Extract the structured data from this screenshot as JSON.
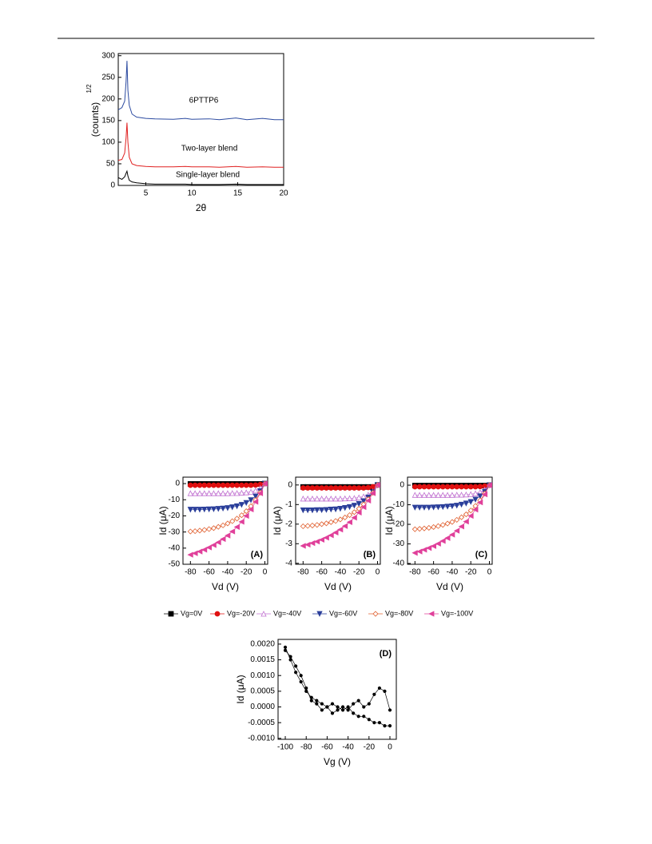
{
  "chart_data": [
    {
      "type": "line",
      "xlabel": "2θ",
      "ylabel": "(counts)",
      "ylabel_sup": "1/2",
      "xlim": [
        2,
        20
      ],
      "ylim": [
        0,
        305
      ],
      "xticks": [
        5,
        10,
        15,
        20
      ],
      "yticks": [
        0,
        50,
        100,
        150,
        200,
        250,
        300
      ],
      "annotations": [
        "6PTTP6",
        "Two-layer blend",
        "Single-layer blend"
      ],
      "x": [
        2,
        2.4,
        2.7,
        2.85,
        2.95,
        3.05,
        3.2,
        3.5,
        4,
        5,
        6,
        8,
        9.3,
        10,
        11.9,
        13,
        14.8,
        16,
        17.7,
        19,
        20
      ],
      "series": [
        {
          "color": "#2b4aa0",
          "values": [
            175,
            180,
            195,
            240,
            288,
            220,
            185,
            165,
            158,
            155,
            154,
            153,
            155,
            153,
            154,
            152,
            156,
            152,
            155,
            152,
            152
          ]
        },
        {
          "color": "#e02020",
          "values": [
            58,
            60,
            75,
            110,
            145,
            100,
            65,
            50,
            46,
            44,
            43,
            43,
            44,
            43,
            43,
            42,
            44,
            42,
            43,
            42,
            42
          ]
        },
        {
          "color": "#000000",
          "values": [
            18,
            14,
            20,
            28,
            33,
            22,
            12,
            8,
            6,
            4,
            3,
            3,
            3,
            2,
            2,
            2,
            3,
            2,
            2,
            2,
            2
          ]
        }
      ]
    },
    {
      "type": "line",
      "xlabel": "Vd (V)",
      "ylabel": "Id (μA)",
      "panel_label": "(A)",
      "xlim": [
        -88,
        3
      ],
      "ylim": [
        -50,
        4
      ],
      "xticks": [
        -80,
        -60,
        -40,
        -20,
        0
      ],
      "yticks": [
        -50,
        -40,
        -30,
        -20,
        -10,
        0
      ],
      "x": [
        -80,
        -75,
        -70,
        -65,
        -60,
        -55,
        -50,
        -45,
        -40,
        -35,
        -30,
        -25,
        -20,
        -15,
        -10,
        -5,
        0
      ],
      "series": [
        {
          "name": "Vg=0V",
          "color": "#000000",
          "marker": "square",
          "values": [
            -0.2,
            -0.2,
            -0.2,
            -0.2,
            -0.2,
            -0.2,
            -0.2,
            -0.2,
            -0.2,
            -0.2,
            -0.2,
            -0.2,
            -0.2,
            -0.2,
            -0.2,
            -0.2,
            0
          ]
        },
        {
          "name": "Vg=-20V",
          "color": "#e01010",
          "marker": "circle",
          "values": [
            -1.0,
            -1.0,
            -1.0,
            -1.0,
            -1.0,
            -1.0,
            -1.0,
            -1.0,
            -1.0,
            -1.0,
            -1.0,
            -1.0,
            -1.0,
            -1.0,
            -0.9,
            -0.6,
            0
          ]
        },
        {
          "name": "Vg=-40V",
          "color": "#c070d0",
          "marker": "open-triangle-up",
          "values": [
            -6.0,
            -6.0,
            -6.0,
            -6.0,
            -6.0,
            -6.0,
            -6.0,
            -6.0,
            -6.0,
            -5.9,
            -5.9,
            -5.7,
            -5.5,
            -5.1,
            -4.3,
            -2.8,
            0
          ]
        },
        {
          "name": "Vg=-60V",
          "color": "#2a3e9a",
          "marker": "triangle-down",
          "values": [
            -16.1,
            -16.1,
            -16.1,
            -16.0,
            -15.9,
            -15.8,
            -15.6,
            -15.4,
            -15.1,
            -14.6,
            -14.0,
            -13.1,
            -11.9,
            -10.2,
            -7.9,
            -4.6,
            0
          ]
        },
        {
          "name": "Vg=-80V",
          "color": "#e06030",
          "marker": "open-diamond",
          "values": [
            -29.7,
            -29.5,
            -29.1,
            -28.7,
            -28.2,
            -27.6,
            -26.8,
            -25.9,
            -24.7,
            -23.3,
            -21.7,
            -19.6,
            -17.1,
            -14.0,
            -10.2,
            -5.6,
            0
          ]
        },
        {
          "name": "Vg=-100V",
          "color": "#e0409a",
          "marker": "triangle-left",
          "values": [
            -44.1,
            -43.2,
            -42.1,
            -41.0,
            -39.6,
            -38.1,
            -36.4,
            -34.4,
            -32.2,
            -29.7,
            -26.9,
            -23.7,
            -20.0,
            -16.0,
            -11.3,
            -6.0,
            0
          ]
        }
      ],
      "legend": "below"
    },
    {
      "type": "line",
      "xlabel": "Vd (V)",
      "ylabel": "Id (μA)",
      "panel_label": "(B)",
      "xlim": [
        -88,
        3
      ],
      "ylim": [
        -4.05,
        0.4
      ],
      "xticks": [
        -80,
        -60,
        -40,
        -20,
        0
      ],
      "yticks": [
        -4,
        -3,
        -2,
        -1,
        0
      ],
      "x": [
        -80,
        -75,
        -70,
        -65,
        -60,
        -55,
        -50,
        -45,
        -40,
        -35,
        -30,
        -25,
        -20,
        -15,
        -10,
        -5,
        0
      ],
      "series": [
        {
          "color": "#000000",
          "marker": "square",
          "values": [
            -0.1,
            -0.1,
            -0.1,
            -0.1,
            -0.1,
            -0.1,
            -0.1,
            -0.1,
            -0.1,
            -0.1,
            -0.1,
            -0.1,
            -0.1,
            -0.1,
            -0.1,
            -0.1,
            0
          ]
        },
        {
          "color": "#e01010",
          "marker": "circle",
          "values": [
            -0.15,
            -0.15,
            -0.15,
            -0.15,
            -0.15,
            -0.15,
            -0.15,
            -0.15,
            -0.15,
            -0.15,
            -0.15,
            -0.15,
            -0.15,
            -0.15,
            -0.13,
            -0.09,
            0
          ]
        },
        {
          "color": "#c070d0",
          "marker": "open-triangle-up",
          "values": [
            -0.7,
            -0.7,
            -0.7,
            -0.7,
            -0.7,
            -0.7,
            -0.7,
            -0.7,
            -0.7,
            -0.69,
            -0.68,
            -0.67,
            -0.64,
            -0.59,
            -0.5,
            -0.33,
            0
          ]
        },
        {
          "color": "#2a3e9a",
          "marker": "triangle-down",
          "values": [
            -1.29,
            -1.29,
            -1.29,
            -1.28,
            -1.28,
            -1.27,
            -1.25,
            -1.24,
            -1.21,
            -1.17,
            -1.12,
            -1.05,
            -0.96,
            -0.82,
            -0.63,
            -0.37,
            0
          ]
        },
        {
          "color": "#e06030",
          "marker": "open-diamond",
          "values": [
            -2.11,
            -2.09,
            -2.07,
            -2.04,
            -2.0,
            -1.96,
            -1.9,
            -1.84,
            -1.76,
            -1.66,
            -1.54,
            -1.39,
            -1.21,
            -0.99,
            -0.73,
            -0.4,
            0
          ]
        },
        {
          "color": "#e0409a",
          "marker": "triangle-left",
          "values": [
            -3.11,
            -3.05,
            -2.97,
            -2.89,
            -2.8,
            -2.69,
            -2.57,
            -2.43,
            -2.28,
            -2.1,
            -1.9,
            -1.67,
            -1.41,
            -1.13,
            -0.8,
            -0.42,
            0
          ]
        }
      ]
    },
    {
      "type": "line",
      "xlabel": "Vd (V)",
      "ylabel": "Id (μA)",
      "panel_label": "(C)",
      "xlim": [
        -88,
        3
      ],
      "ylim": [
        -40.4,
        4.1
      ],
      "xticks": [
        -80,
        -60,
        -40,
        -20,
        0
      ],
      "yticks": [
        -40,
        -30,
        -20,
        -10,
        0
      ],
      "x": [
        -80,
        -75,
        -70,
        -65,
        -60,
        -55,
        -50,
        -45,
        -40,
        -35,
        -30,
        -25,
        -20,
        -15,
        -10,
        -5,
        0
      ],
      "series": [
        {
          "color": "#000000",
          "marker": "square",
          "values": [
            -0.2,
            -0.2,
            -0.2,
            -0.2,
            -0.2,
            -0.2,
            -0.2,
            -0.2,
            -0.2,
            -0.2,
            -0.2,
            -0.2,
            -0.2,
            -0.2,
            -0.2,
            -0.2,
            0
          ]
        },
        {
          "color": "#e01010",
          "marker": "circle",
          "values": [
            -0.8,
            -0.8,
            -0.8,
            -0.8,
            -0.8,
            -0.8,
            -0.8,
            -0.8,
            -0.8,
            -0.8,
            -0.8,
            -0.8,
            -0.8,
            -0.8,
            -0.7,
            -0.5,
            0
          ]
        },
        {
          "color": "#c070d0",
          "marker": "open-triangle-up",
          "values": [
            -5.0,
            -5.0,
            -5.0,
            -5.0,
            -5.0,
            -5.0,
            -5.0,
            -5.0,
            -5.0,
            -4.9,
            -4.9,
            -4.8,
            -4.6,
            -4.2,
            -3.6,
            -2.3,
            0
          ]
        },
        {
          "color": "#2a3e9a",
          "marker": "triangle-down",
          "values": [
            -11.4,
            -11.4,
            -11.4,
            -11.4,
            -11.3,
            -11.2,
            -11.1,
            -10.9,
            -10.7,
            -10.4,
            -9.9,
            -9.3,
            -8.5,
            -7.3,
            -5.6,
            -3.3,
            0
          ]
        },
        {
          "color": "#e06030",
          "marker": "open-diamond",
          "values": [
            -22.5,
            -22.3,
            -22.1,
            -21.8,
            -21.4,
            -20.9,
            -20.3,
            -19.6,
            -18.8,
            -17.7,
            -16.4,
            -14.9,
            -12.9,
            -10.6,
            -7.8,
            -4.3,
            0
          ]
        },
        {
          "color": "#e0409a",
          "marker": "triangle-left",
          "values": [
            -34.6,
            -33.9,
            -33.0,
            -32.1,
            -31.1,
            -29.9,
            -28.5,
            -27.0,
            -25.3,
            -23.3,
            -21.1,
            -18.6,
            -15.7,
            -12.5,
            -8.8,
            -4.7,
            0
          ]
        }
      ]
    },
    {
      "type": "line",
      "xlabel": "Vg (V)",
      "ylabel": "Id (μA)",
      "panel_label": "(D)",
      "xlim": [
        -106.9,
        6.1
      ],
      "ylim": [
        -0.00103,
        0.00215
      ],
      "xticks": [
        -100,
        -80,
        -60,
        -40,
        -20,
        0
      ],
      "yticks": [
        {
          "value": -0.001,
          "label": "-0.0010"
        },
        {
          "value": -0.0005,
          "label": "-0.0005"
        },
        {
          "value": 0,
          "label": "0.0000"
        },
        {
          "value": 0.0005,
          "label": "0.0005"
        },
        {
          "value": 0.001,
          "label": "0.0010"
        },
        {
          "value": 0.0015,
          "label": "0.0015"
        },
        {
          "value": 0.002,
          "label": "0.0020"
        }
      ],
      "x": [
        -100,
        -95,
        -90,
        -85,
        -80,
        -75,
        -70,
        -65,
        -60,
        -55,
        -50,
        -45,
        -40,
        -35,
        -30,
        -25,
        -20,
        -15,
        -10,
        -5,
        0
      ],
      "series": [
        {
          "color": "#000000",
          "marker": "dot",
          "values": [
            0.0019,
            0.0015,
            0.0011,
            0.0008,
            0.0005,
            0.0003,
            0.0002,
            0.0001,
            0.0,
            0.0001,
            0.0,
            -0.0001,
            0.0,
            -0.0002,
            -0.0003,
            -0.0003,
            -0.0004,
            -0.0005,
            -0.0005,
            -0.0006,
            -0.0006
          ]
        },
        {
          "color": "#000000",
          "marker": "dot",
          "values": [
            0.0018,
            0.0016,
            0.0013,
            0.001,
            0.0006,
            0.0002,
            0.0001,
            -0.0001,
            0.0,
            -0.0002,
            -0.0001,
            0.0,
            -0.0001,
            0.0001,
            0.0002,
            0.0,
            0.0001,
            0.0004,
            0.0006,
            0.0005,
            -0.0001
          ]
        }
      ]
    }
  ]
}
